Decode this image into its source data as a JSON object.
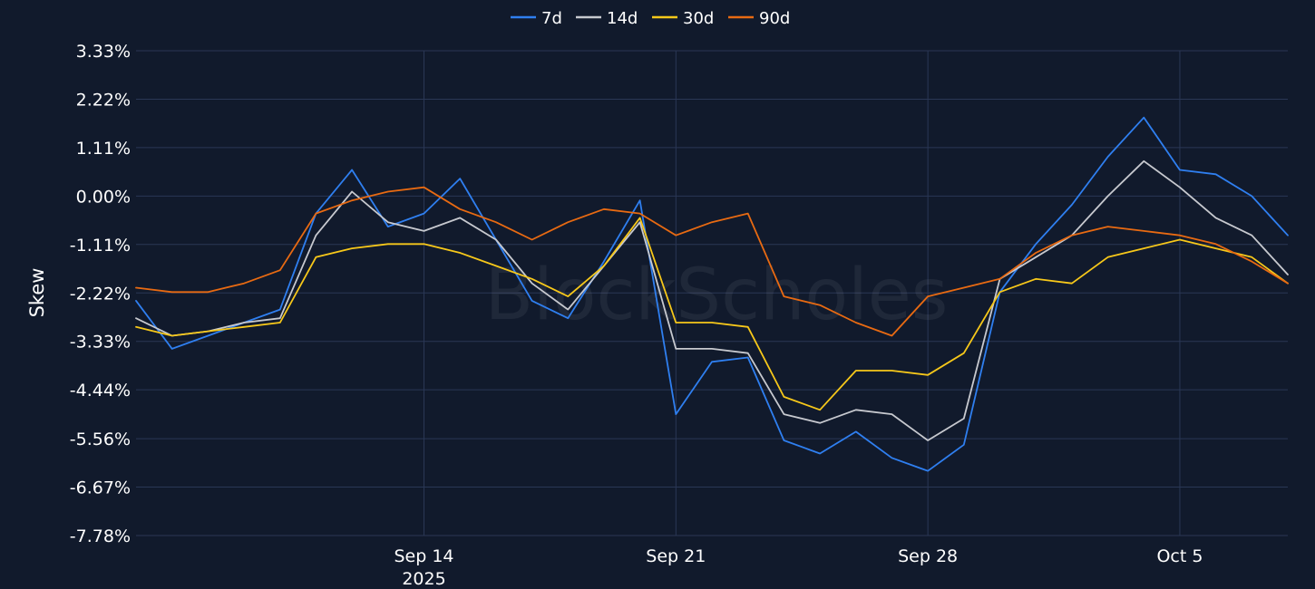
{
  "chart_data": {
    "type": "line",
    "watermark": "BlockScholes",
    "ylabel": "Skew",
    "xlabel": "",
    "ylim": [
      -7.78,
      3.33
    ],
    "y_ticks": [
      "3.33%",
      "2.22%",
      "1.11%",
      "0.00%",
      "-1.11%",
      "-2.22%",
      "-3.33%",
      "-4.44%",
      "-5.56%",
      "-6.67%",
      "-7.78%"
    ],
    "y_tick_values": [
      3.33,
      2.22,
      1.11,
      0.0,
      -1.11,
      -2.22,
      -3.33,
      -4.44,
      -5.56,
      -6.67,
      -7.78
    ],
    "x_range": [
      "2025-09-06",
      "2025-10-08"
    ],
    "x_ticks": [
      {
        "date": "2025-09-14",
        "label": "Sep 14",
        "sublabel": "2025"
      },
      {
        "date": "2025-09-21",
        "label": "Sep 21",
        "sublabel": ""
      },
      {
        "date": "2025-09-28",
        "label": "Sep 28",
        "sublabel": ""
      },
      {
        "date": "2025-10-05",
        "label": "Oct 5",
        "sublabel": ""
      }
    ],
    "grid": true,
    "legend_position": "top-center",
    "x": [
      "2025-09-06",
      "2025-09-07",
      "2025-09-08",
      "2025-09-09",
      "2025-09-10",
      "2025-09-11",
      "2025-09-12",
      "2025-09-13",
      "2025-09-14",
      "2025-09-15",
      "2025-09-16",
      "2025-09-17",
      "2025-09-18",
      "2025-09-19",
      "2025-09-20",
      "2025-09-21",
      "2025-09-22",
      "2025-09-23",
      "2025-09-24",
      "2025-09-25",
      "2025-09-26",
      "2025-09-27",
      "2025-09-28",
      "2025-09-29",
      "2025-09-30",
      "2025-10-01",
      "2025-10-02",
      "2025-10-03",
      "2025-10-04",
      "2025-10-05",
      "2025-10-06",
      "2025-10-07",
      "2025-10-08"
    ],
    "series": [
      {
        "name": "7d",
        "color": "#2f7ff0",
        "values": [
          -2.4,
          -3.5,
          -3.2,
          -2.9,
          -2.6,
          -0.4,
          0.6,
          -0.7,
          -0.4,
          0.4,
          -1.0,
          -2.4,
          -2.8,
          -1.5,
          -0.1,
          -5.0,
          -3.8,
          -3.7,
          -5.6,
          -5.9,
          -5.4,
          -6.0,
          -6.3,
          -5.7,
          -2.2,
          -1.1,
          -0.2,
          0.9,
          1.8,
          0.6,
          0.5,
          0.0,
          -0.9
        ]
      },
      {
        "name": "14d",
        "color": "#c7c9cf",
        "values": [
          -2.8,
          -3.2,
          -3.1,
          -2.9,
          -2.8,
          -0.9,
          0.1,
          -0.6,
          -0.8,
          -0.5,
          -1.0,
          -2.0,
          -2.6,
          -1.6,
          -0.6,
          -3.5,
          -3.5,
          -3.6,
          -5.0,
          -5.2,
          -4.9,
          -5.0,
          -5.6,
          -5.1,
          -1.9,
          -1.4,
          -0.9,
          0.0,
          0.8,
          0.2,
          -0.5,
          -0.9,
          -1.8
        ]
      },
      {
        "name": "30d",
        "color": "#f7c81a",
        "values": [
          -3.0,
          -3.2,
          -3.1,
          -3.0,
          -2.9,
          -1.4,
          -1.2,
          -1.1,
          -1.1,
          -1.3,
          -1.6,
          -1.9,
          -2.3,
          -1.6,
          -0.5,
          -2.9,
          -2.9,
          -3.0,
          -4.6,
          -4.9,
          -4.0,
          -4.0,
          -4.1,
          -3.6,
          -2.2,
          -1.9,
          -2.0,
          -1.4,
          -1.2,
          -1.0,
          -1.2,
          -1.4,
          -2.0
        ]
      },
      {
        "name": "90d",
        "color": "#e86a12",
        "values": [
          -2.1,
          -2.2,
          -2.2,
          -2.0,
          -1.7,
          -0.4,
          -0.1,
          0.1,
          0.2,
          -0.3,
          -0.6,
          -1.0,
          -0.6,
          -0.3,
          -0.4,
          -0.9,
          -0.6,
          -0.4,
          -2.3,
          -2.5,
          -2.9,
          -3.2,
          -2.3,
          -2.1,
          -1.9,
          -1.3,
          -0.9,
          -0.7,
          -0.8,
          -0.9,
          -1.1,
          -1.5,
          -2.0
        ]
      }
    ]
  }
}
